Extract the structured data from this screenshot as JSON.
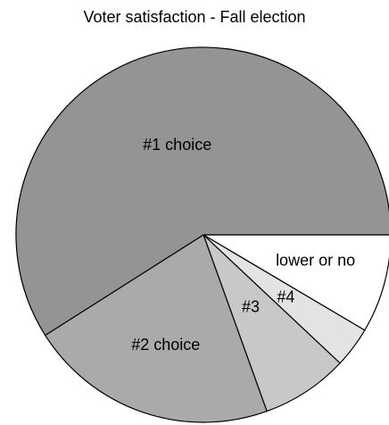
{
  "chart_data": {
    "type": "pie",
    "title": "Voter satisfaction - Fall election",
    "slices": [
      {
        "label": "lower or no",
        "value": 8.5,
        "color": "#ffffff"
      },
      {
        "label": "#4",
        "value": 3.5,
        "color": "#e3e3e3"
      },
      {
        "label": "#3",
        "value": 7.5,
        "color": "#c8c8c8"
      },
      {
        "label": "#2 choice",
        "value": 21.5,
        "color": "#aaaaaa"
      },
      {
        "label": "#1 choice",
        "value": 59.0,
        "color": "#949494"
      }
    ],
    "start": "3 o'clock",
    "direction": "clockwise",
    "legend": "none"
  }
}
